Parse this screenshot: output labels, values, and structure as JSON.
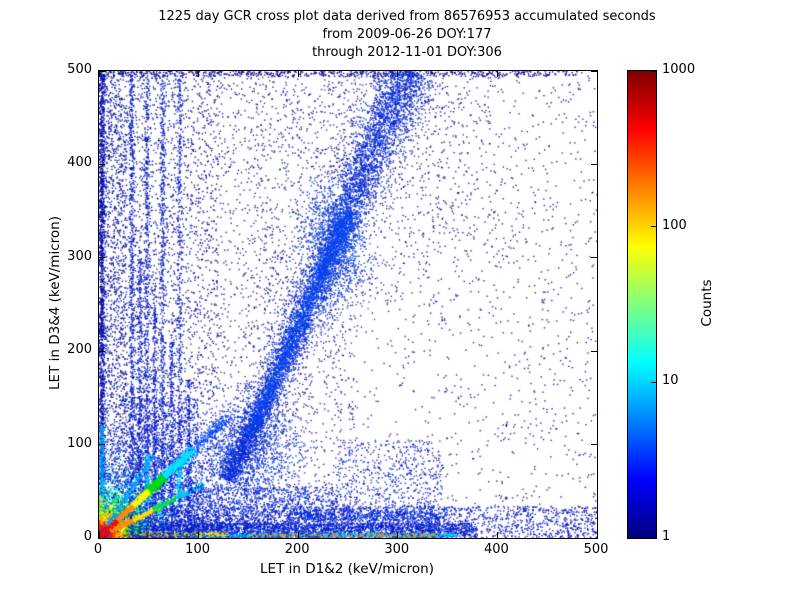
{
  "chart_data": {
    "type": "heatmap",
    "subtype": "2d-histogram scatter density cross plot, jet colormap, log color scale",
    "title_lines": [
      "1225 day GCR cross plot data derived from 86576953 accumulated seconds",
      "from 2009-06-26 DOY:177",
      "through 2012-11-01 DOY:306"
    ],
    "xlabel": "LET in D1&2 (keV/micron)",
    "ylabel": "LET in D3&4 (keV/micron)",
    "xlim": [
      0,
      500
    ],
    "ylim": [
      0,
      500
    ],
    "xticks": [
      0,
      100,
      200,
      300,
      400,
      500
    ],
    "yticks": [
      0,
      100,
      200,
      300,
      400,
      500
    ],
    "colorbar": {
      "label": "Counts",
      "scale": "log",
      "range": [
        1,
        1000
      ],
      "ticks": [
        1,
        10,
        100,
        1000
      ],
      "gradient_stops": [
        {
          "pos": 0.0,
          "color": "#00007f"
        },
        {
          "pos": 0.125,
          "color": "#0000ff"
        },
        {
          "pos": 0.375,
          "color": "#00ffff"
        },
        {
          "pos": 0.625,
          "color": "#ffff00"
        },
        {
          "pos": 0.875,
          "color": "#ff0000"
        },
        {
          "pos": 1.0,
          "color": "#7f0000"
        }
      ]
    },
    "seed": 42,
    "features": [
      {
        "type": "uniform",
        "x0": 0,
        "x1": 500,
        "y0": 0,
        "y1": 500,
        "n": 1700,
        "c": "#00008f",
        "a": 0.85
      },
      {
        "type": "uniform",
        "x0": 0,
        "x1": 260,
        "y0": 0,
        "y1": 500,
        "n": 2400,
        "c": "#00008f",
        "a": 0.85
      },
      {
        "type": "uniform",
        "x0": 0,
        "x1": 120,
        "y0": 0,
        "y1": 500,
        "n": 1700,
        "c": "#000a9f",
        "a": 0.9
      },
      {
        "type": "uniform",
        "x0": 5,
        "x1": 28,
        "y0": 0,
        "y1": 500,
        "n": 900,
        "c": "#000f9f",
        "a": 0.9
      },
      {
        "type": "uniform",
        "x0": 0,
        "x1": 480,
        "y0": 494,
        "y1": 500,
        "n": 550,
        "c": "#00008f",
        "a": 0.95
      },
      {
        "type": "uniform",
        "x0": 330,
        "x1": 500,
        "y0": 0,
        "y1": 500,
        "n": 330,
        "c": "#00008f",
        "a": 0.85
      },
      {
        "type": "uniform",
        "x0": 150,
        "x1": 330,
        "y0": 250,
        "y1": 500,
        "n": 500,
        "c": "#00008f",
        "a": 0.8
      },
      {
        "type": "uniform",
        "x0": 300,
        "x1": 430,
        "y0": 300,
        "y1": 500,
        "n": 260,
        "c": "#00008f",
        "a": 0.85
      },
      {
        "type": "vstreak",
        "x": 3,
        "y0": 0,
        "y1": 500,
        "w": 2.5,
        "n": 1600,
        "c": "#0010b0",
        "a": 0.95
      },
      {
        "type": "uniform",
        "x0": 0,
        "x1": 500,
        "y0": 0,
        "y1": 34,
        "n": 2200,
        "c": "#0010c0",
        "a": 0.9
      },
      {
        "type": "uniform",
        "x0": 0,
        "x1": 380,
        "y0": 0,
        "y1": 16,
        "n": 2600,
        "c": "#0020d0",
        "a": 0.9
      },
      {
        "type": "hstreak",
        "y": 3,
        "x0": 80,
        "x1": 360,
        "w": 2.2,
        "n": 900,
        "c": "#00cfff",
        "a": 0.9
      },
      {
        "type": "hstreak",
        "y": 3,
        "x0": 150,
        "x1": 340,
        "w": 1.6,
        "n": 260,
        "c": "#ff9000",
        "a": 0.9
      },
      {
        "type": "hstreak",
        "y": 4,
        "x0": 10,
        "x1": 130,
        "w": 2.2,
        "n": 450,
        "c": "#ffe000",
        "a": 0.95
      },
      {
        "type": "hstreak",
        "y": 3,
        "x0": 0,
        "x1": 60,
        "w": 2.2,
        "n": 380,
        "c": "#ff8000",
        "a": 0.95
      },
      {
        "type": "hstreak",
        "y": 2,
        "x0": 0,
        "x1": 30,
        "w": 2.0,
        "n": 300,
        "c": "#ff0000",
        "s": 1.6,
        "a": 1
      },
      {
        "type": "vstreak",
        "x": 3,
        "y0": 0,
        "y1": 120,
        "w": 2.4,
        "n": 500,
        "c": "#00a0ff",
        "a": 0.9
      },
      {
        "type": "vstreak",
        "x": 2,
        "y0": 0,
        "y1": 45,
        "w": 2.0,
        "n": 260,
        "c": "#ffd000",
        "a": 0.95
      },
      {
        "type": "vstreak",
        "x": 2,
        "y0": 0,
        "y1": 22,
        "w": 1.8,
        "n": 220,
        "c": "#ff7000",
        "a": 1
      },
      {
        "type": "vstreak",
        "x": 1.5,
        "y0": 0,
        "y1": 12,
        "w": 1.5,
        "n": 180,
        "c": "#ff0000",
        "s": 1.6,
        "a": 1
      },
      {
        "type": "blob",
        "cx": 40,
        "cy": 40,
        "sx": 40,
        "sy": 40,
        "n": 1700,
        "c": "#0030e0",
        "a": 0.9
      },
      {
        "type": "blob",
        "cx": 26,
        "cy": 26,
        "sx": 24,
        "sy": 24,
        "n": 1000,
        "c": "#00ffff",
        "a": 0.9
      },
      {
        "type": "blob",
        "cx": 18,
        "cy": 17,
        "sx": 15,
        "sy": 15,
        "n": 700,
        "c": "#00e000",
        "a": 0.95
      },
      {
        "type": "blob",
        "cx": 13,
        "cy": 12,
        "sx": 10,
        "sy": 10,
        "n": 600,
        "c": "#ffff00",
        "s": 1.5,
        "a": 0.95
      },
      {
        "type": "blob",
        "cx": 8,
        "cy": 8,
        "sx": 7,
        "sy": 7,
        "n": 550,
        "c": "#ff8c00",
        "s": 1.5,
        "a": 1
      },
      {
        "type": "blob",
        "cx": 4,
        "cy": 4,
        "sx": 4.5,
        "sy": 4.5,
        "n": 650,
        "c": "#ff1000",
        "s": 1.6,
        "a": 1
      },
      {
        "type": "blob",
        "cx": 2,
        "cy": 2,
        "sx": 2,
        "sy": 2,
        "n": 220,
        "c": "#8f0000",
        "s": 1.7,
        "a": 1
      },
      {
        "type": "uniform",
        "x0": 25,
        "x1": 100,
        "y0": 0,
        "y1": 150,
        "n": 1300,
        "c": "#0018c8",
        "a": 0.9
      },
      {
        "type": "vstreak",
        "x": 33,
        "y0": 0,
        "y1": 495,
        "w": 2.2,
        "n": 650,
        "c": "#0018c8",
        "a": 0.9
      },
      {
        "type": "vstreak",
        "x": 41,
        "y0": 0,
        "y1": 310,
        "w": 2.0,
        "n": 360,
        "c": "#0018c8",
        "a": 0.9
      },
      {
        "type": "vstreak",
        "x": 48,
        "y0": 0,
        "y1": 495,
        "w": 2.2,
        "n": 580,
        "c": "#0018c8",
        "a": 0.9
      },
      {
        "type": "vstreak",
        "x": 56,
        "y0": 0,
        "y1": 270,
        "w": 2.0,
        "n": 300,
        "c": "#0018c8",
        "a": 0.9
      },
      {
        "type": "vstreak",
        "x": 64,
        "y0": 0,
        "y1": 495,
        "w": 2.2,
        "n": 500,
        "c": "#0018c8",
        "a": 0.9
      },
      {
        "type": "vstreak",
        "x": 73,
        "y0": 0,
        "y1": 210,
        "w": 2.0,
        "n": 250,
        "c": "#0018c8",
        "a": 0.9
      },
      {
        "type": "vstreak",
        "x": 81,
        "y0": 0,
        "y1": 495,
        "w": 2.2,
        "n": 430,
        "c": "#0018c8",
        "a": 0.9
      },
      {
        "type": "vstreak",
        "x": 90,
        "y0": 0,
        "y1": 170,
        "w": 2.0,
        "n": 200,
        "c": "#0018c8",
        "a": 0.9
      },
      {
        "type": "vstreak",
        "x": 48,
        "y0": 40,
        "y1": 90,
        "w": 2.0,
        "n": 130,
        "c": "#00d0ff",
        "a": 0.95
      },
      {
        "type": "vstreak",
        "x": 81,
        "y0": 45,
        "y1": 85,
        "w": 2.0,
        "n": 100,
        "c": "#00d0ff",
        "a": 0.95
      },
      {
        "type": "line",
        "x0": 0,
        "y0": 0,
        "x1": 130,
        "y1": 130,
        "w": 6,
        "n": 700,
        "c": "#0050ff",
        "a": 0.9
      },
      {
        "type": "line",
        "x0": 60,
        "y0": 60,
        "x1": 95,
        "y1": 95,
        "w": 5,
        "n": 420,
        "c": "#00e8ff",
        "s": 1.5,
        "a": 0.95
      },
      {
        "type": "line",
        "x0": 45,
        "y0": 45,
        "x1": 65,
        "y1": 65,
        "w": 4,
        "n": 300,
        "c": "#00e000",
        "s": 1.5,
        "a": 0.95
      },
      {
        "type": "line",
        "x0": 30,
        "y0": 30,
        "x1": 50,
        "y1": 50,
        "w": 3.2,
        "n": 280,
        "c": "#ffff00",
        "s": 1.5,
        "a": 1
      },
      {
        "type": "line",
        "x0": 15,
        "y0": 15,
        "x1": 34,
        "y1": 34,
        "w": 2.6,
        "n": 260,
        "c": "#ff8c00",
        "s": 1.5,
        "a": 1
      },
      {
        "type": "line",
        "x0": 0,
        "y0": 0,
        "x1": 18,
        "y1": 18,
        "w": 2.2,
        "n": 300,
        "c": "#ff0000",
        "s": 1.6,
        "a": 1
      },
      {
        "type": "line",
        "x0": 12,
        "y0": 7,
        "x1": 40,
        "y1": 22,
        "w": 2.4,
        "n": 220,
        "c": "#ff9000",
        "a": 0.95
      },
      {
        "type": "line",
        "x0": 35,
        "y0": 19,
        "x1": 62,
        "y1": 34,
        "w": 2.6,
        "n": 200,
        "c": "#ffe000",
        "a": 0.95
      },
      {
        "type": "line",
        "x0": 55,
        "y0": 30,
        "x1": 85,
        "y1": 47,
        "w": 3.0,
        "n": 180,
        "c": "#00dd55",
        "a": 0.9
      },
      {
        "type": "line",
        "x0": 78,
        "y0": 43,
        "x1": 105,
        "y1": 58,
        "w": 3.2,
        "n": 140,
        "c": "#00c0ff",
        "a": 0.9
      },
      {
        "type": "line",
        "x0": 8,
        "y0": 13,
        "x1": 55,
        "y1": 88,
        "w": 3.0,
        "n": 260,
        "c": "#00a0ff",
        "a": 0.85
      },
      {
        "type": "path",
        "pts": [
          [
            128,
            62
          ],
          [
            160,
            130
          ],
          [
            195,
            215
          ],
          [
            228,
            295
          ],
          [
            258,
            370
          ],
          [
            288,
            445
          ],
          [
            312,
            500
          ]
        ],
        "w0": 25,
        "w1": 60,
        "n": 1700,
        "c": "#000f9f",
        "a": 0.8
      },
      {
        "type": "path",
        "pts": [
          [
            128,
            62
          ],
          [
            160,
            130
          ],
          [
            195,
            215
          ],
          [
            228,
            295
          ],
          [
            258,
            370
          ],
          [
            288,
            445
          ],
          [
            312,
            500
          ]
        ],
        "w0": 11,
        "w1": 26,
        "n": 5200,
        "c": "#0028d8",
        "a": 0.9
      },
      {
        "type": "path",
        "pts": [
          [
            150,
            110
          ],
          [
            190,
            200
          ],
          [
            225,
            285
          ],
          [
            252,
            350
          ]
        ],
        "w0": 7,
        "w1": 12,
        "n": 1800,
        "c": "#0045f0",
        "a": 0.9
      },
      {
        "type": "blob",
        "cx": 238,
        "cy": 315,
        "sx": 17,
        "sy": 38,
        "n": 900,
        "c": "#0045f0",
        "a": 0.9
      },
      {
        "type": "blob",
        "cx": 152,
        "cy": 92,
        "sx": 26,
        "sy": 30,
        "n": 1200,
        "c": "#0030e0",
        "a": 0.9
      },
      {
        "type": "uniform",
        "x0": 90,
        "x1": 240,
        "y0": 0,
        "y1": 55,
        "n": 1300,
        "c": "#0020d0",
        "a": 0.9
      },
      {
        "type": "hstreak",
        "y": 24,
        "x0": 190,
        "x1": 350,
        "w": 7,
        "n": 600,
        "c": "#0030e0",
        "a": 0.9
      },
      {
        "type": "uniform",
        "x0": 240,
        "x1": 345,
        "y0": 0,
        "y1": 105,
        "n": 800,
        "c": "#0018c8",
        "a": 0.85
      }
    ]
  }
}
